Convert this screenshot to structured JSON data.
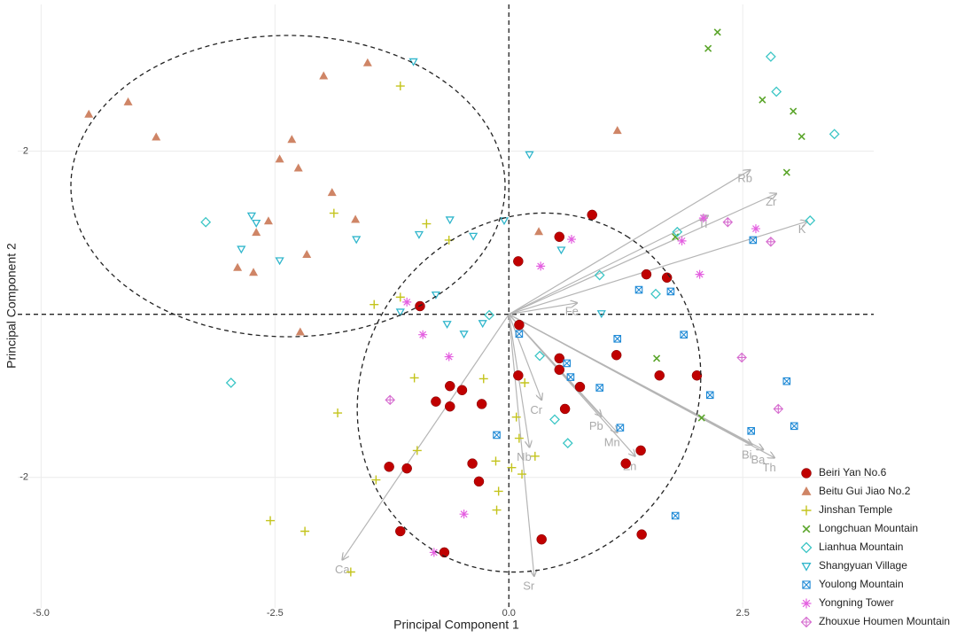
{
  "chart_data": {
    "type": "biplot",
    "x_label": "Principal Component 1",
    "y_label": "Principal Component 2",
    "xlim": [
      -5.25,
      3.9
    ],
    "ylim": [
      -3.6,
      3.8
    ],
    "xticks": [
      {
        "value": -5,
        "label": "-5.0"
      },
      -2.5,
      {
        "value": 0,
        "label": "0.0"
      },
      2.5
    ],
    "yticks": [
      -2,
      2
    ],
    "grid": true,
    "legend": "lower right",
    "series": [
      {
        "name": "Beiri Yan No.6",
        "color": "#c00000",
        "marker": "circle",
        "x": [
          0.89,
          0.54,
          0.1,
          1.47,
          1.69,
          -0.95,
          0.11,
          0.54,
          0.54,
          1.15,
          1.61,
          2.01,
          0.1,
          0.76,
          -0.63,
          -0.5,
          -0.78,
          -0.63,
          -0.29,
          0.6,
          1.25,
          1.41,
          -1.28,
          -1.09,
          -0.39,
          -0.32,
          -1.16,
          -0.69,
          0.35,
          1.42
        ],
        "y": [
          1.22,
          0.95,
          0.65,
          0.49,
          0.45,
          0.1,
          -0.13,
          -0.54,
          -0.68,
          -0.5,
          -0.75,
          -0.75,
          -0.75,
          -0.89,
          -0.88,
          -0.93,
          -1.07,
          -1.13,
          -1.1,
          -1.16,
          -1.83,
          -1.67,
          -1.87,
          -1.89,
          -1.83,
          -2.05,
          -2.66,
          -2.92,
          -2.76,
          -2.7
        ]
      },
      {
        "name": "Beitu Gui Jiao No.2",
        "color": "#cf8566",
        "marker": "triangle",
        "x": [
          -4.49,
          -4.07,
          -3.77,
          -1.98,
          -1.51,
          -2.32,
          -2.45,
          -2.25,
          -1.89,
          -1.64,
          -2.57,
          -2.7,
          -2.9,
          -2.73,
          -2.16,
          -2.23,
          1.16,
          0.32
        ],
        "y": [
          2.45,
          2.6,
          2.17,
          2.92,
          3.08,
          2.14,
          1.9,
          1.79,
          1.49,
          1.16,
          1.14,
          1.0,
          0.57,
          0.51,
          0.73,
          -0.22,
          2.25,
          1.01
        ]
      },
      {
        "name": "Jinshan Temple",
        "color": "#c4c41c",
        "marker": "plus",
        "x": [
          -1.16,
          -1.87,
          -0.88,
          -0.64,
          -1.44,
          -1.16,
          -1.01,
          -0.27,
          0.17,
          -1.83,
          0.08,
          -0.98,
          0.28,
          -1.42,
          -0.14,
          0.03,
          0.14,
          -0.11,
          -0.13,
          -2.55,
          -2.18,
          -1.69,
          0.11
        ],
        "y": [
          2.8,
          1.24,
          1.11,
          0.91,
          0.12,
          0.21,
          -0.78,
          -0.79,
          -0.84,
          -1.21,
          -1.26,
          -1.67,
          -1.74,
          -2.03,
          -1.8,
          -1.88,
          -1.96,
          -2.17,
          -2.4,
          -2.53,
          -2.66,
          -3.16,
          -1.52
        ]
      },
      {
        "name": "Longchuan Mountain",
        "color": "#5aa52a",
        "marker": "cross",
        "x": [
          2.23,
          2.13,
          2.71,
          3.04,
          3.13,
          2.97,
          1.78,
          1.58,
          2.06
        ],
        "y": [
          3.46,
          3.26,
          2.63,
          2.49,
          2.18,
          1.74,
          0.95,
          -0.54,
          -1.27
        ]
      },
      {
        "name": "Lianhua Mountain",
        "color": "#3cc6c6",
        "marker": "diamond",
        "x": [
          2.8,
          2.86,
          3.48,
          3.22,
          -3.24,
          1.8,
          0.97,
          1.57,
          -2.97,
          0.49,
          0.63,
          0.33,
          -0.21
        ],
        "y": [
          3.16,
          2.73,
          2.21,
          1.15,
          1.13,
          1.01,
          0.48,
          0.25,
          -0.84,
          -1.29,
          -1.58,
          -0.51,
          -0.01
        ]
      },
      {
        "name": "Shangyuan Village",
        "color": "#30b6cc",
        "marker": "triangle-down",
        "x": [
          -1.02,
          0.22,
          -2.75,
          -2.7,
          -2.86,
          -2.45,
          -1.63,
          -0.96,
          -0.63,
          -0.38,
          -0.05,
          0.56,
          -0.78,
          -1.16,
          -0.66,
          -0.48,
          -0.28,
          0.99
        ],
        "y": [
          3.1,
          1.96,
          1.21,
          1.12,
          0.8,
          0.66,
          0.92,
          0.98,
          1.16,
          0.96,
          1.15,
          0.79,
          0.24,
          0.03,
          -0.12,
          -0.24,
          -0.11,
          0.01
        ]
      },
      {
        "name": "Youlong Mountain",
        "color": "#1f8ad6",
        "marker": "square-cross",
        "x": [
          1.39,
          1.73,
          2.61,
          0.11,
          1.16,
          1.87,
          0.62,
          0.97,
          0.66,
          2.15,
          2.97,
          2.59,
          3.05,
          -0.13,
          1.19,
          1.78
        ],
        "y": [
          0.3,
          0.28,
          0.91,
          -0.24,
          -0.3,
          -0.25,
          -0.6,
          -0.9,
          -0.77,
          -0.99,
          -0.82,
          -1.43,
          -1.37,
          -1.48,
          -1.39,
          -2.47
        ]
      },
      {
        "name": "Yongning  Tower",
        "color": "#e45fe0",
        "marker": "asterisk",
        "x": [
          0.67,
          0.34,
          2.08,
          1.85,
          2.04,
          2.64,
          -1.09,
          -0.92,
          -0.64,
          -0.48,
          -0.8
        ],
        "y": [
          0.92,
          0.59,
          1.18,
          0.9,
          0.49,
          1.05,
          0.15,
          -0.25,
          -0.52,
          -2.45,
          -2.92
        ]
      },
      {
        "name": "Zhouxue Houmen Mountain",
        "color": "#d66ccf",
        "marker": "diamond-plus",
        "x": [
          2.34,
          2.8,
          2.49,
          2.88,
          -1.27
        ],
        "y": [
          1.13,
          0.89,
          -0.53,
          -1.16,
          -1.05
        ]
      }
    ],
    "loadings": [
      {
        "name": "Rb",
        "x": 2.58,
        "y": 1.77
      },
      {
        "name": "Zr",
        "x": 2.86,
        "y": 1.48
      },
      {
        "name": "Ti",
        "x": 2.13,
        "y": 1.21
      },
      {
        "name": "K",
        "x": 3.19,
        "y": 1.14
      },
      {
        "name": "Fe",
        "x": 0.73,
        "y": 0.14
      },
      {
        "name": "Cr",
        "x": 0.35,
        "y": -1.05
      },
      {
        "name": "Pb",
        "x": 0.99,
        "y": -1.25
      },
      {
        "name": "Mn",
        "x": 1.16,
        "y": -1.45
      },
      {
        "name": "Zn",
        "x": 1.35,
        "y": -1.74
      },
      {
        "name": "Nb",
        "x": 0.22,
        "y": -1.63
      },
      {
        "name": "Sr",
        "x": 0.27,
        "y": -3.21
      },
      {
        "name": "Ca",
        "x": -1.78,
        "y": -3.01
      },
      {
        "name": "Bi",
        "x": 2.6,
        "y": -1.6
      },
      {
        "name": "Ba",
        "x": 2.72,
        "y": -1.66
      },
      {
        "name": "Th",
        "x": 2.84,
        "y": -1.76
      }
    ]
  }
}
